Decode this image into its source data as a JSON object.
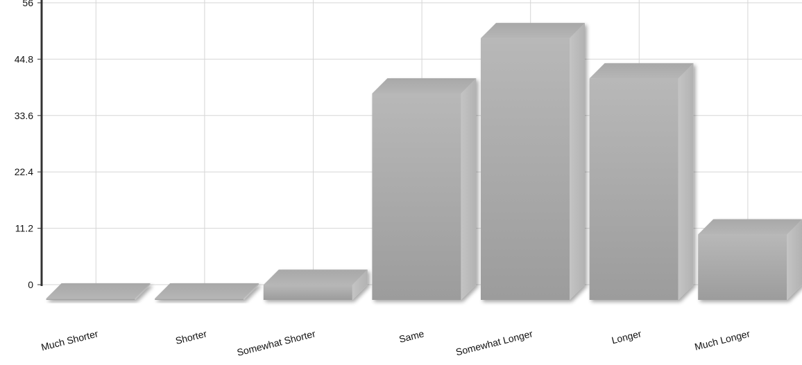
{
  "chart_data": {
    "type": "bar",
    "categories": [
      "Much Shorter",
      "Shorter",
      "Somewhat Shorter",
      "Same",
      "Somewhat Longer",
      "Longer",
      "Much Longer"
    ],
    "values": [
      0,
      0,
      3,
      41,
      52,
      44,
      13
    ],
    "yticks": [
      "0",
      "11.2",
      "22.4",
      "33.6",
      "44.8",
      "56"
    ],
    "ylim": [
      0,
      56
    ],
    "grid": true,
    "style": "3d",
    "bar_color": "#aaaaaa"
  }
}
